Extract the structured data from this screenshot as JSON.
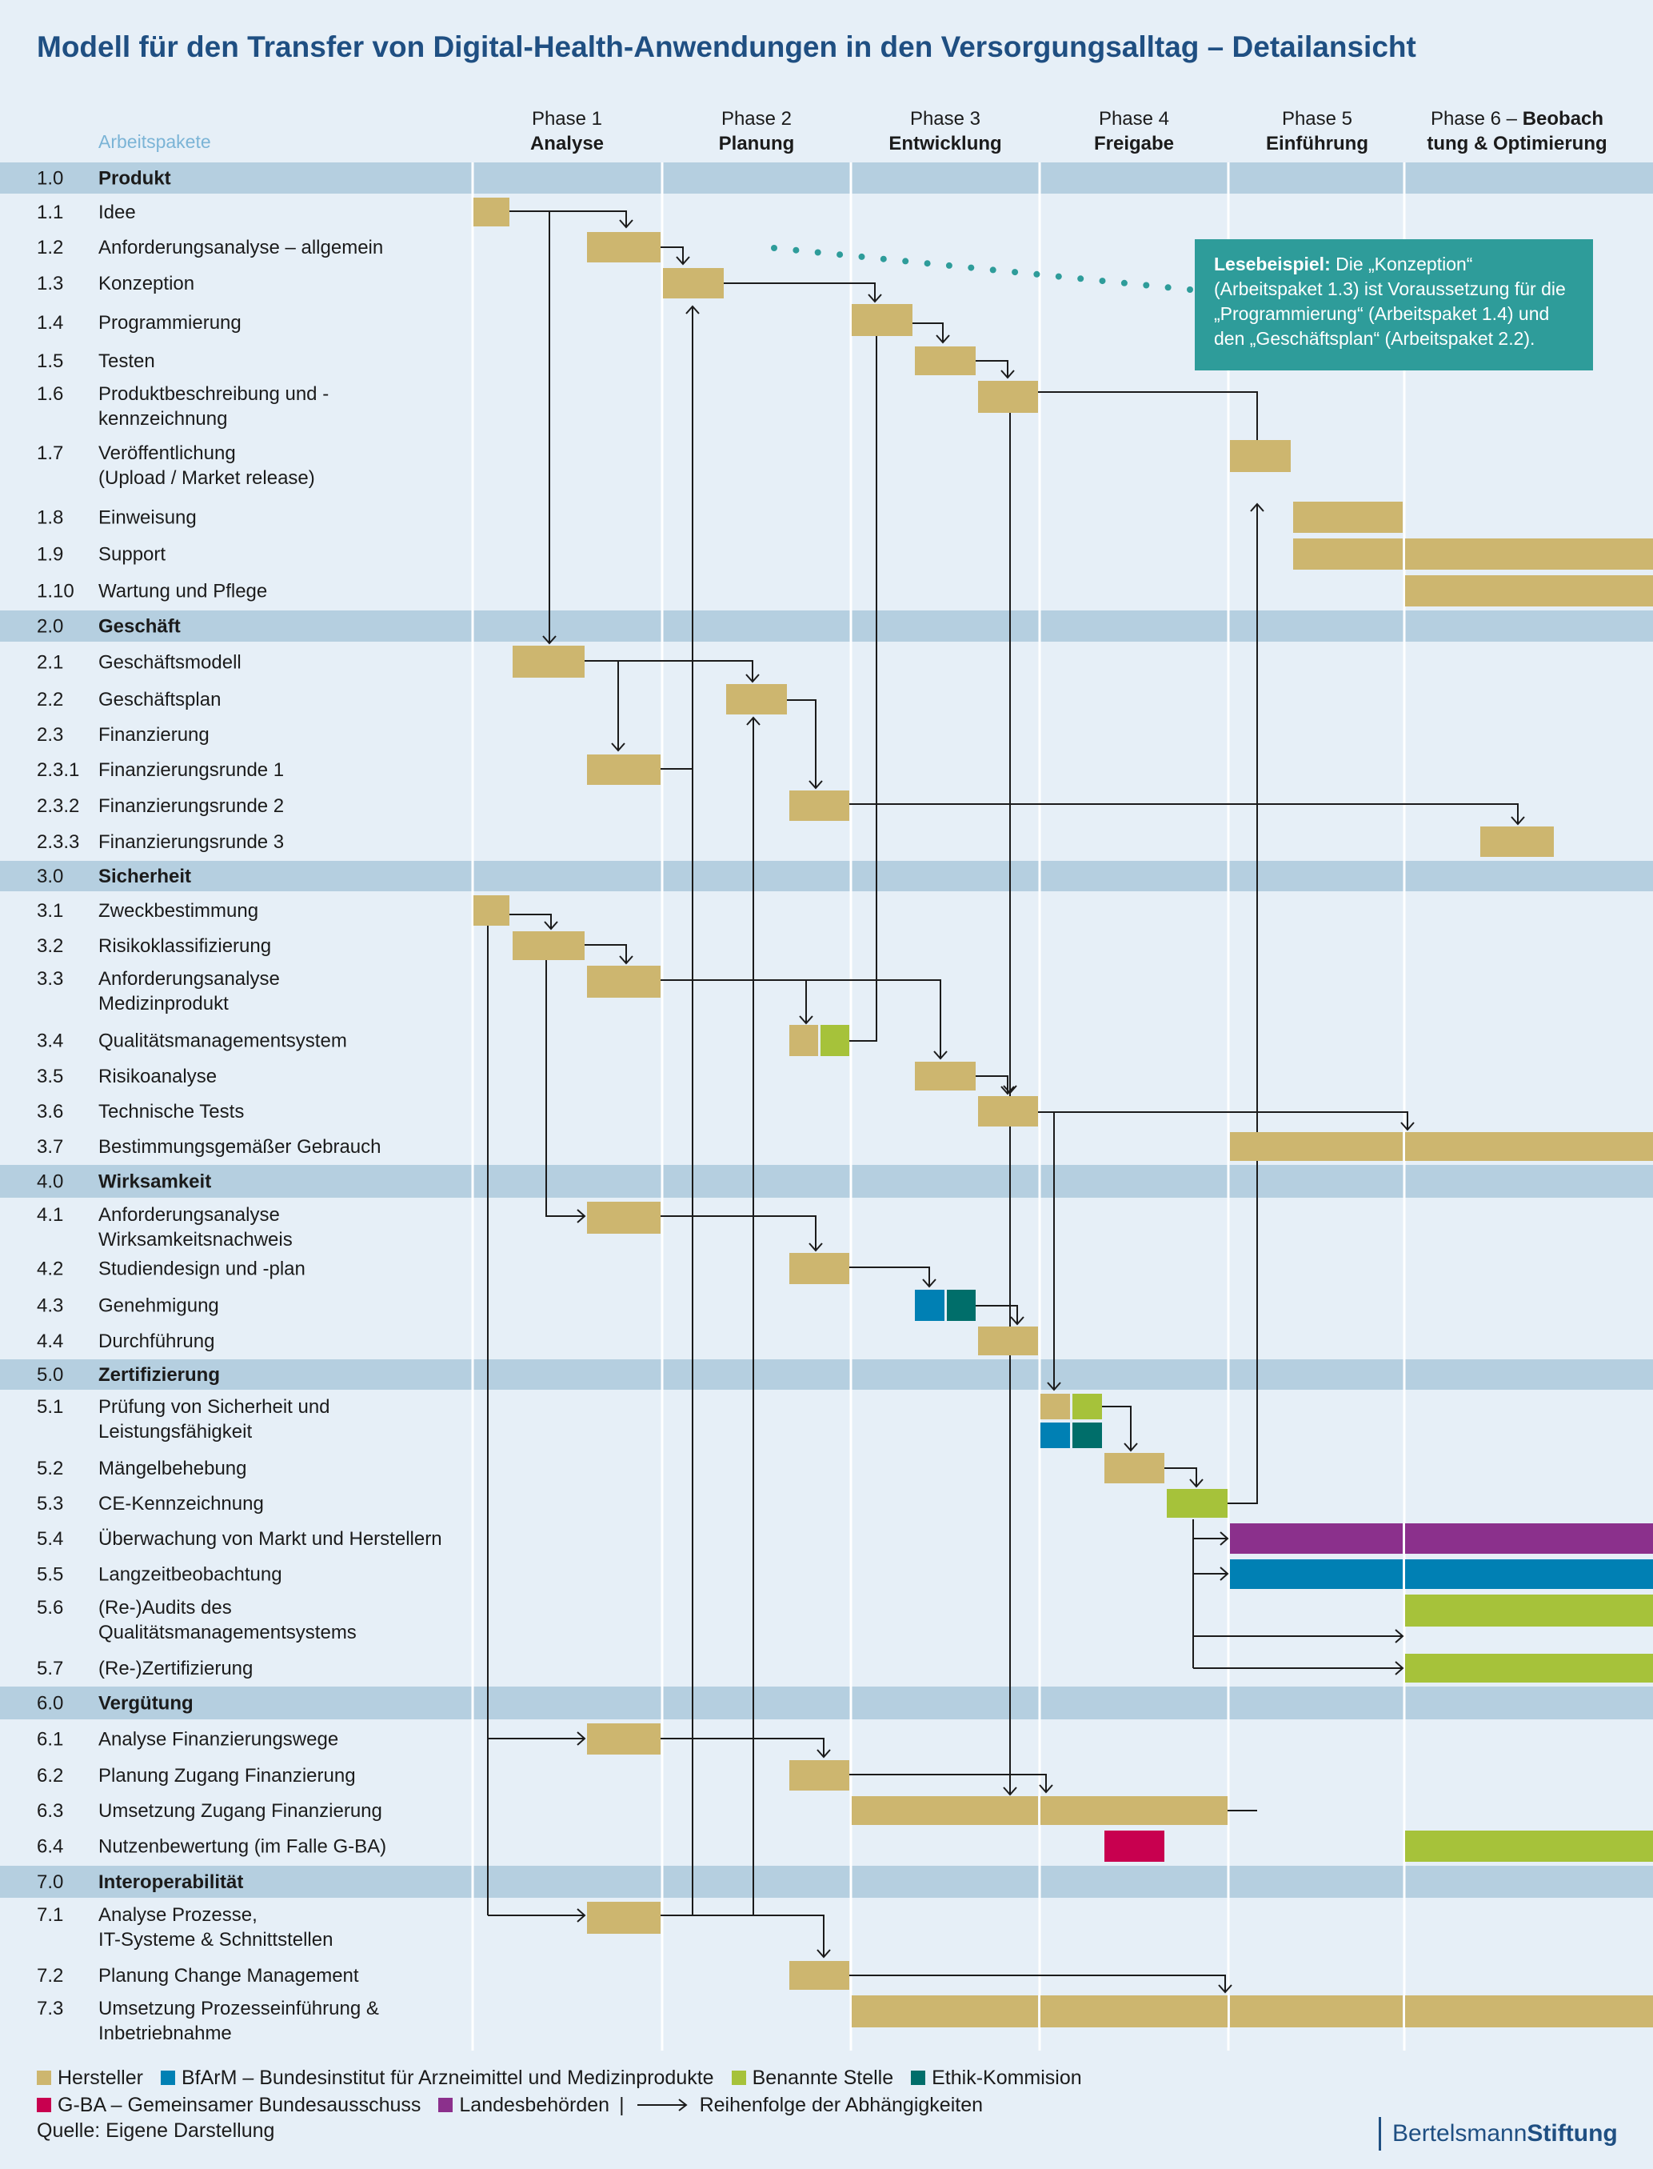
{
  "title": "Modell für den Transfer von Digital-Health-Anwendungen in den Versorgungsalltag – Detailansicht",
  "column_header": "Arbeitspakete",
  "phases": [
    {
      "line1": "Phase 1",
      "line2": "Analyse"
    },
    {
      "line1": "Phase 2",
      "line2": "Planung"
    },
    {
      "line1": "Phase 3",
      "line2": "Entwicklung"
    },
    {
      "line1": "Phase 4",
      "line2": "Freigabe"
    },
    {
      "line1": "Phase 5",
      "line2": "Einführung"
    },
    {
      "line1a": "Phase 6 – ",
      "line1b": "Beobach",
      "line2": "tung & Optimierung"
    }
  ],
  "rows": [
    {
      "num": "1.0",
      "label": "Produkt",
      "section": true
    },
    {
      "num": "1.1",
      "label": "Idee"
    },
    {
      "num": "1.2",
      "label": "Anforderungsanalyse – allgemein"
    },
    {
      "num": "1.3",
      "label": "Konzeption"
    },
    {
      "num": "1.4",
      "label": "Programmierung"
    },
    {
      "num": "1.5",
      "label": "Testen"
    },
    {
      "num": "1.6",
      "label": "Produktbeschreibung und -",
      "label2": "kennzeichnung"
    },
    {
      "num": "1.7",
      "label": "Veröffentlichung",
      "label2": "(Upload / Market release)"
    },
    {
      "num": "1.8",
      "label": "Einweisung"
    },
    {
      "num": "1.9",
      "label": "Support"
    },
    {
      "num": "1.10",
      "label": "Wartung und Pflege"
    },
    {
      "num": "2.0",
      "label": "Geschäft",
      "section": true
    },
    {
      "num": "2.1",
      "label": "Geschäftsmodell"
    },
    {
      "num": "2.2",
      "label": "Geschäftsplan"
    },
    {
      "num": "2.3",
      "label": "Finanzierung"
    },
    {
      "num": "2.3.1",
      "label": "Finanzierungsrunde 1"
    },
    {
      "num": "2.3.2",
      "label": "Finanzierungsrunde 2"
    },
    {
      "num": "2.3.3",
      "label": "Finanzierungsrunde 3"
    },
    {
      "num": "3.0",
      "label": "Sicherheit",
      "section": true
    },
    {
      "num": "3.1",
      "label": "Zweckbestimmung"
    },
    {
      "num": "3.2",
      "label": "Risikoklassifizierung"
    },
    {
      "num": "3.3",
      "label": "Anforderungsanalyse",
      "label2": "Medizinprodukt"
    },
    {
      "num": "3.4",
      "label": "Qualitätsmanagementsystem"
    },
    {
      "num": "3.5",
      "label": "Risikoanalyse"
    },
    {
      "num": "3.6",
      "label": "Technische Tests"
    },
    {
      "num": "3.7",
      "label": "Bestimmungsgemäßer Gebrauch"
    },
    {
      "num": "4.0",
      "label": "Wirksamkeit",
      "section": true
    },
    {
      "num": "4.1",
      "label": "Anforderungsanalyse",
      "label2": "Wirksamkeitsnachweis"
    },
    {
      "num": "4.2",
      "label": "Studiendesign und -plan"
    },
    {
      "num": "4.3",
      "label": "Genehmigung"
    },
    {
      "num": "4.4",
      "label": "Durchführung"
    },
    {
      "num": "5.0",
      "label": "Zertifizierung",
      "section": true
    },
    {
      "num": "5.1",
      "label": "Prüfung von Sicherheit und",
      "label2": "Leistungsfähigkeit"
    },
    {
      "num": "5.2",
      "label": "Mängelbehebung"
    },
    {
      "num": "5.3",
      "label": "CE-Kennzeichnung"
    },
    {
      "num": "5.4",
      "label": "Überwachung von Markt und Herstellern"
    },
    {
      "num": "5.5",
      "label": "Langzeitbeobachtung"
    },
    {
      "num": "5.6",
      "label": "(Re-)Audits des",
      "label2": "Qualitätsmanagementsystems"
    },
    {
      "num": "5.7",
      "label": "(Re-)Zertifizierung"
    },
    {
      "num": "6.0",
      "label": "Vergütung",
      "section": true
    },
    {
      "num": "6.1",
      "label": "Analyse Finanzierungswege"
    },
    {
      "num": "6.2",
      "label": "Planung Zugang Finanzierung"
    },
    {
      "num": "6.3",
      "label": "Umsetzung Zugang Finanzierung"
    },
    {
      "num": "6.4",
      "label": "Nutzenbewertung (im Falle G-BA)"
    },
    {
      "num": "7.0",
      "label": "Interoperabilität",
      "section": true
    },
    {
      "num": "7.1",
      "label": "Analyse Prozesse,",
      "label2": "IT-Systeme & Schnittstellen"
    },
    {
      "num": "7.2",
      "label": "Planung Change Management"
    },
    {
      "num": "7.3",
      "label": "Umsetzung Prozesseinführung &",
      "label2": "Inbetriebnahme"
    }
  ],
  "colors": {
    "Hersteller": "#cdb66f",
    "BfArM": "#0080b4",
    "Benannte Stelle": "#a6c23a",
    "Ethik-Kommision": "#006e6a",
    "G-BA": "#c8004f",
    "Landesbehörden": "#8b308c",
    "section": "#b5cfe0",
    "callout": "#2e9c9a",
    "title": "#1f4f82"
  },
  "callout": {
    "bold": "Lesebeispiel:",
    "text": " Die „Konzeption“ (Arbeitspaket 1.3) ist Voraussetzung für die „Programmierung“ (Arbeitspaket 1.4) und den „Geschäftsplan“ (Arbeitspaket 2.2)."
  },
  "legend": {
    "row1": [
      {
        "color_key": "Hersteller",
        "label": "Hersteller"
      },
      {
        "color_key": "BfArM",
        "label": "BfArM – Bundesinstitut für Arzneimittel und Medizinprodukte"
      },
      {
        "color_key": "Benannte Stelle",
        "label": "Benannte Stelle"
      },
      {
        "color_key": "Ethik-Kommision",
        "label": "Ethik-Kommision"
      }
    ],
    "row2": [
      {
        "color_key": "G-BA",
        "label": "G-BA – Gemeinsamer Bundesausschuss"
      },
      {
        "color_key": "Landesbehörden",
        "label": "Landesbehörden"
      }
    ],
    "separator": "|",
    "arrow_label": "Reihenfolge der Abhängigkeiten"
  },
  "source": "Quelle: Eigene Darstellung",
  "brand": {
    "part1": "Bertelsmann",
    "part2": "Stiftung"
  }
}
